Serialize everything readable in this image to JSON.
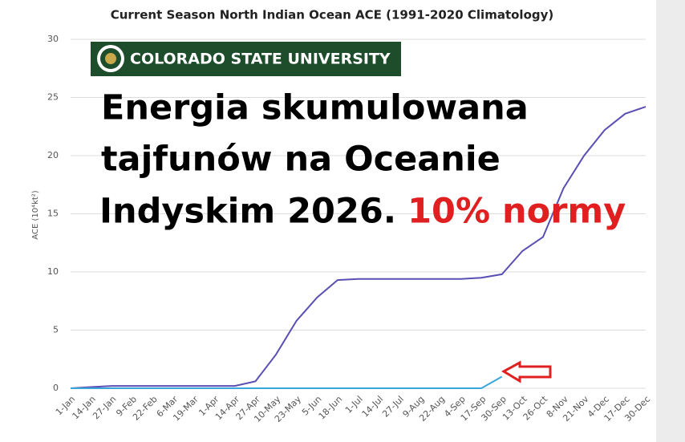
{
  "chart_data": {
    "type": "line",
    "title": "Current Season North Indian Ocean ACE (1991-2020 Climatology)",
    "y_label": "ACE (10⁴kt²)",
    "categories": [
      "1-Jan",
      "14-Jan",
      "27-Jan",
      "9-Feb",
      "22-Feb",
      "6-Mar",
      "19-Mar",
      "1-Apr",
      "14-Apr",
      "27-Apr",
      "10-May",
      "23-May",
      "5-Jun",
      "18-Jun",
      "1-Jul",
      "14-Jul",
      "27-Jul",
      "9-Aug",
      "22-Aug",
      "4-Sep",
      "17-Sep",
      "30-Sep",
      "13-Oct",
      "26-Oct",
      "8-Nov",
      "21-Nov",
      "4-Dec",
      "17-Dec",
      "30-Dec"
    ],
    "series": [
      {
        "color": "#5a4fb3",
        "values": [
          0,
          0.1,
          0.2,
          0.2,
          0.2,
          0.2,
          0.2,
          0.2,
          0.2,
          0.6,
          2.9,
          5.8,
          7.8,
          9.3,
          9.4,
          9.4,
          9.4,
          9.4,
          9.4,
          9.4,
          9.5,
          9.8,
          11.8,
          13.0,
          17.2,
          20.0,
          22.2,
          23.6,
          24.2
        ]
      },
      {
        "color": "#3aa6d9",
        "values": [
          0,
          0,
          0,
          0,
          0,
          0,
          0,
          0,
          0,
          0,
          0,
          0,
          0,
          0,
          0,
          0,
          0,
          0,
          0,
          0,
          0,
          1.0,
          null,
          null,
          null,
          null,
          null,
          null,
          null
        ]
      }
    ],
    "ylim": [
      0,
      30
    ],
    "yticks": [
      0,
      5,
      10,
      15,
      20,
      25,
      30
    ],
    "grid": true,
    "logo_text": "COLORADO STATE UNIVERSITY",
    "annotation_lines": [
      "Energia skumulowana",
      "tajfunów na Oceanie",
      "Indyskim 2026."
    ],
    "annotation_highlight": "10% normy"
  }
}
